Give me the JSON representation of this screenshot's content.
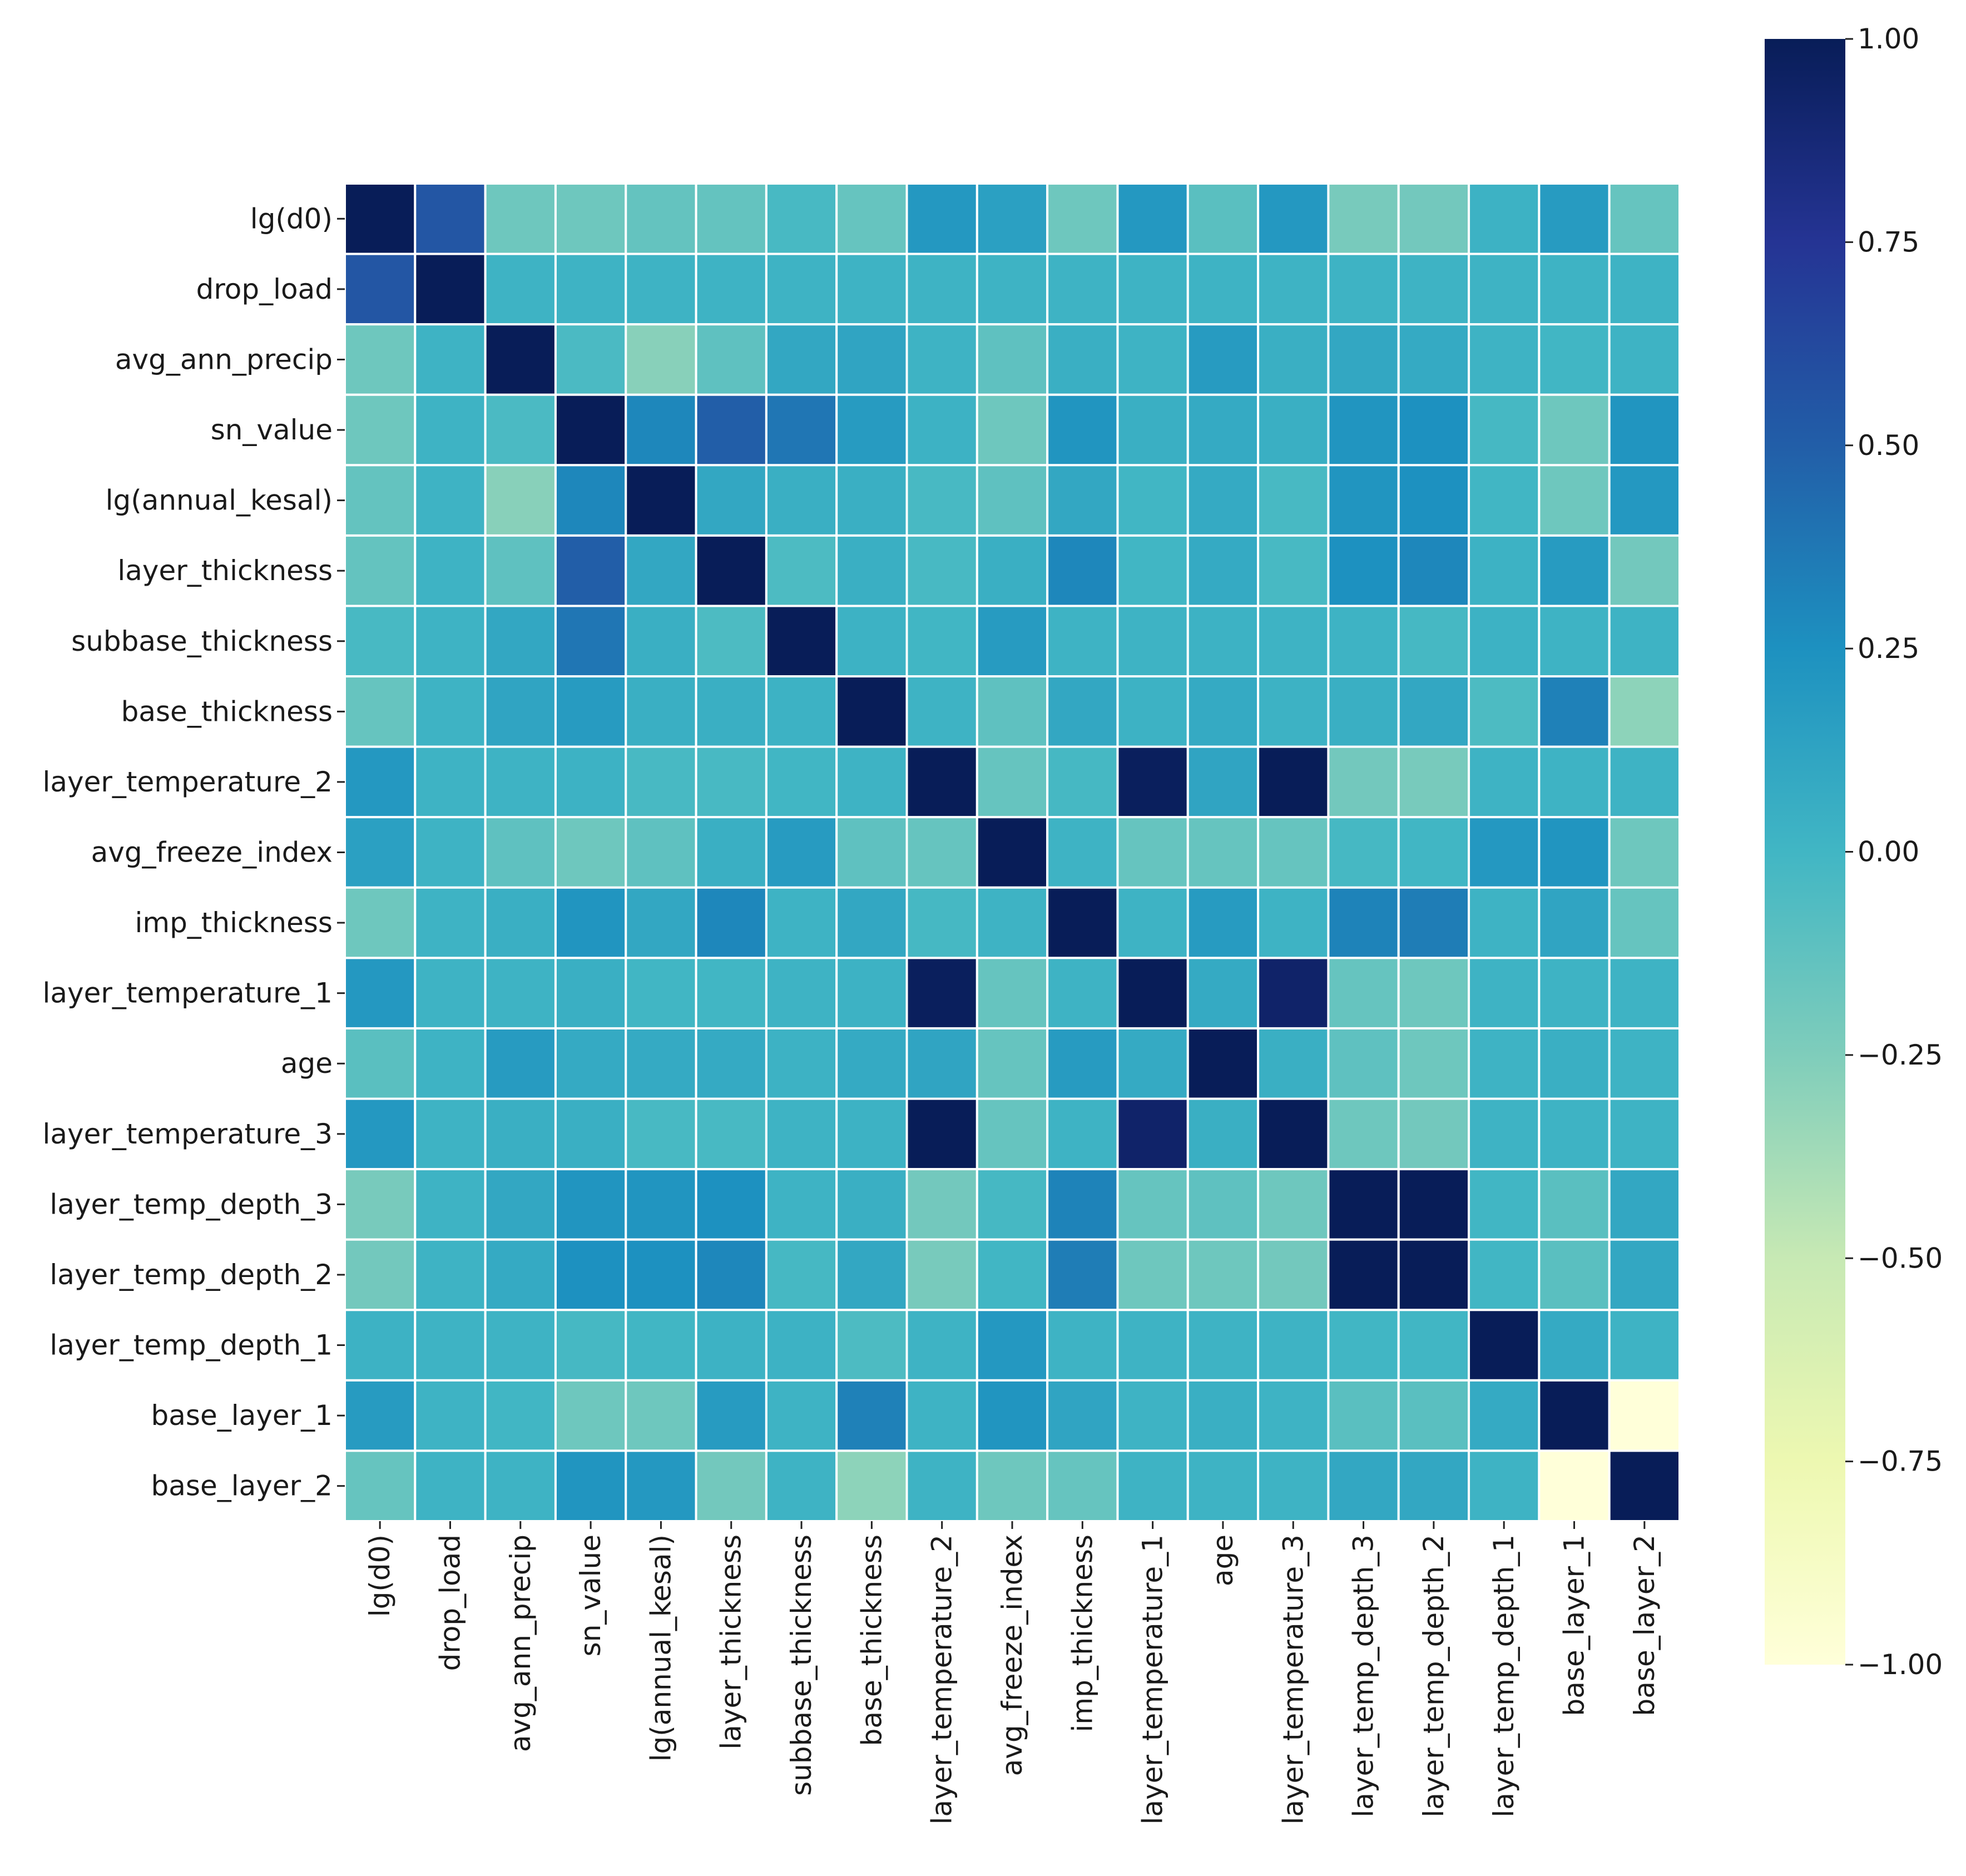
{
  "chart_data": {
    "type": "heatmap",
    "title": "",
    "xlabel": "",
    "ylabel": "",
    "variables": [
      "lg(d0)",
      "drop_load",
      "avg_ann_precip",
      "sn_value",
      "lg(annual_kesal)",
      "layer_thickness",
      "subbase_thickness",
      "base_thickness",
      "layer_temperature_2",
      "avg_freeze_index",
      "imp_thickness",
      "layer_temperature_1",
      "age",
      "layer_temperature_3",
      "layer_temp_depth_3",
      "layer_temp_depth_2",
      "layer_temp_depth_1",
      "base_layer_1",
      "base_layer_2"
    ],
    "matrix": [
      [
        1.0,
        0.55,
        -0.18,
        -0.18,
        -0.14,
        -0.14,
        -0.03,
        -0.15,
        0.2,
        0.15,
        -0.18,
        0.2,
        -0.1,
        0.2,
        -0.22,
        -0.2,
        0.03,
        0.18,
        -0.15
      ],
      [
        0.55,
        1.0,
        0.02,
        0.02,
        0.02,
        0.02,
        0.02,
        0.02,
        0.02,
        0.02,
        0.02,
        0.02,
        0.02,
        0.02,
        0.02,
        0.02,
        0.02,
        0.02,
        0.02
      ],
      [
        -0.18,
        0.02,
        1.0,
        -0.04,
        -0.28,
        -0.12,
        0.1,
        0.12,
        0.02,
        -0.12,
        0.05,
        0.02,
        0.18,
        0.05,
        0.1,
        0.08,
        0.02,
        0.0,
        0.02
      ],
      [
        -0.18,
        0.02,
        -0.04,
        1.0,
        0.3,
        0.5,
        0.38,
        0.18,
        0.03,
        -0.18,
        0.22,
        0.05,
        0.08,
        0.05,
        0.22,
        0.25,
        -0.02,
        -0.18,
        0.22
      ],
      [
        -0.14,
        0.02,
        -0.28,
        0.3,
        1.0,
        0.1,
        0.05,
        0.05,
        -0.03,
        -0.12,
        0.1,
        0.0,
        0.08,
        -0.03,
        0.22,
        0.25,
        0.0,
        -0.18,
        0.2
      ],
      [
        -0.14,
        0.02,
        -0.12,
        0.5,
        0.1,
        1.0,
        -0.05,
        0.05,
        -0.03,
        0.05,
        0.3,
        0.0,
        0.08,
        -0.03,
        0.25,
        0.3,
        0.03,
        0.18,
        -0.2
      ],
      [
        -0.03,
        0.02,
        0.1,
        0.38,
        0.05,
        -0.05,
        1.0,
        0.03,
        0.0,
        0.18,
        0.02,
        0.02,
        0.03,
        0.02,
        0.02,
        -0.02,
        0.03,
        0.02,
        0.02
      ],
      [
        -0.15,
        0.02,
        0.12,
        0.18,
        0.05,
        0.05,
        0.03,
        1.0,
        0.02,
        -0.12,
        0.1,
        0.03,
        0.08,
        0.03,
        0.05,
        0.1,
        -0.05,
        0.33,
        -0.3
      ],
      [
        0.2,
        0.02,
        0.02,
        0.03,
        -0.03,
        -0.03,
        0.0,
        0.02,
        1.0,
        -0.15,
        -0.02,
        0.98,
        0.12,
        1.0,
        -0.2,
        -0.22,
        0.02,
        0.02,
        0.02
      ],
      [
        0.15,
        0.02,
        -0.12,
        -0.18,
        -0.12,
        0.05,
        0.18,
        -0.12,
        -0.15,
        1.0,
        0.02,
        -0.15,
        -0.15,
        -0.15,
        -0.02,
        0.0,
        0.2,
        0.22,
        -0.18
      ],
      [
        -0.18,
        0.02,
        0.05,
        0.22,
        0.1,
        0.3,
        0.02,
        0.1,
        -0.02,
        0.02,
        1.0,
        0.02,
        0.18,
        0.02,
        0.32,
        0.35,
        0.02,
        0.12,
        -0.15
      ],
      [
        0.2,
        0.02,
        0.02,
        0.05,
        0.0,
        0.0,
        0.02,
        0.03,
        0.98,
        -0.15,
        0.02,
        1.0,
        0.08,
        0.93,
        -0.15,
        -0.18,
        0.02,
        0.02,
        0.02
      ],
      [
        -0.1,
        0.02,
        0.18,
        0.08,
        0.08,
        0.08,
        0.03,
        0.08,
        0.12,
        -0.15,
        0.18,
        0.08,
        1.0,
        0.05,
        -0.12,
        -0.18,
        0.02,
        0.05,
        0.02
      ],
      [
        0.2,
        0.02,
        0.05,
        0.05,
        -0.03,
        -0.03,
        0.02,
        0.03,
        1.0,
        -0.15,
        0.02,
        0.93,
        0.05,
        1.0,
        -0.18,
        -0.2,
        0.02,
        0.02,
        0.02
      ],
      [
        -0.22,
        0.02,
        0.1,
        0.22,
        0.22,
        0.25,
        0.02,
        0.05,
        -0.2,
        -0.02,
        0.32,
        -0.15,
        -0.12,
        -0.18,
        1.0,
        1.0,
        0.0,
        -0.1,
        0.1
      ],
      [
        -0.2,
        0.02,
        0.08,
        0.25,
        0.25,
        0.3,
        -0.02,
        0.1,
        -0.22,
        0.0,
        0.35,
        -0.18,
        -0.18,
        -0.2,
        1.0,
        1.0,
        0.0,
        -0.1,
        0.1
      ],
      [
        0.03,
        0.02,
        0.02,
        -0.02,
        0.0,
        0.03,
        0.03,
        -0.05,
        0.02,
        0.2,
        0.02,
        0.02,
        0.02,
        0.02,
        0.0,
        0.0,
        1.0,
        0.08,
        0.02
      ],
      [
        0.18,
        0.02,
        0.0,
        -0.18,
        -0.18,
        0.18,
        0.02,
        0.33,
        0.02,
        0.22,
        0.12,
        0.02,
        0.05,
        0.02,
        -0.1,
        -0.1,
        0.08,
        1.0,
        -1.0
      ],
      [
        -0.15,
        0.02,
        0.02,
        0.22,
        0.2,
        -0.2,
        0.02,
        -0.3,
        0.02,
        -0.18,
        -0.15,
        0.02,
        0.02,
        0.02,
        0.1,
        0.1,
        0.02,
        -1.0,
        1.0
      ]
    ],
    "colorbar": {
      "min": -1.0,
      "max": 1.0,
      "ticks": [
        1.0,
        0.75,
        0.5,
        0.25,
        0.0,
        -0.25,
        -0.5,
        -0.75,
        -1.0
      ],
      "tick_labels": [
        "1.00",
        "0.75",
        "0.50",
        "0.25",
        "0.00",
        "−0.25",
        "−0.50",
        "−0.75",
        "−1.00"
      ],
      "colormap": "YlGnBu",
      "stops": [
        [
          0.0,
          "#ffffd9"
        ],
        [
          0.125,
          "#edf8b1"
        ],
        [
          0.25,
          "#c7e9b4"
        ],
        [
          0.375,
          "#7fcdbb"
        ],
        [
          0.5,
          "#41b6c4"
        ],
        [
          0.625,
          "#1d91c0"
        ],
        [
          0.75,
          "#225ea8"
        ],
        [
          0.875,
          "#253494"
        ],
        [
          1.0,
          "#081d58"
        ]
      ]
    },
    "grid": false,
    "cell_separator_color": "#ffffff"
  }
}
